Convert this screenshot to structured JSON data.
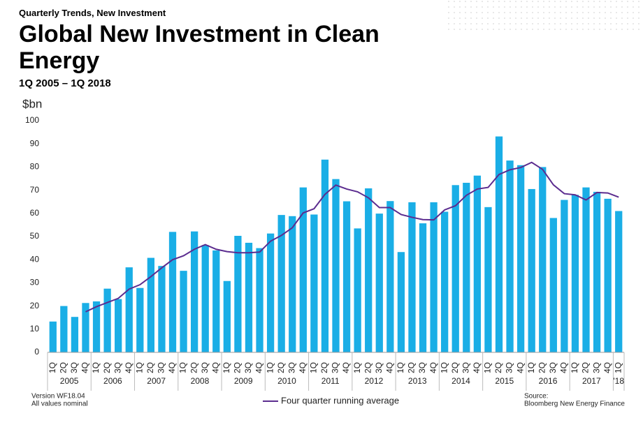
{
  "chart_data": {
    "type": "bar",
    "kicker": "Quarterly Trends, New Investment",
    "title": "Global New Investment in Clean Energy",
    "subtitle": "1Q 2005 – 1Q 2018",
    "y_label": "$bn",
    "categories": [
      "1Q",
      "2Q",
      "3Q",
      "4Q",
      "1Q",
      "2Q",
      "3Q",
      "4Q",
      "1Q",
      "2Q",
      "3Q",
      "4Q",
      "1Q",
      "2Q",
      "3Q",
      "4Q",
      "1Q",
      "2Q",
      "3Q",
      "4Q",
      "1Q",
      "2Q",
      "3Q",
      "4Q",
      "1Q",
      "2Q",
      "3Q",
      "4Q",
      "1Q",
      "2Q",
      "3Q",
      "4Q",
      "1Q",
      "2Q",
      "3Q",
      "4Q",
      "1Q",
      "2Q",
      "3Q",
      "4Q",
      "1Q",
      "2Q",
      "3Q",
      "4Q",
      "1Q",
      "2Q",
      "3Q",
      "4Q",
      "1Q",
      "2Q",
      "3Q",
      "4Q",
      "1Q"
    ],
    "year_groups": [
      "2005",
      "2006",
      "2007",
      "2008",
      "2009",
      "2010",
      "2011",
      "2012",
      "2013",
      "2014",
      "2015",
      "2016",
      "2017",
      "'18"
    ],
    "values": [
      13.3,
      20,
      15.3,
      21.3,
      22,
      27.5,
      23,
      36.7,
      27.8,
      40.8,
      37.3,
      52,
      35.2,
      52.2,
      46.3,
      44,
      30.8,
      50.3,
      47.3,
      45,
      51.3,
      59.3,
      58.8,
      71.2,
      59.5,
      83.2,
      74.8,
      65.2,
      53.5,
      70.8,
      59.9,
      65.3,
      43.3,
      64.8,
      55.7,
      64.8,
      60.7,
      72.2,
      73.2,
      76.3,
      62.7,
      93.2,
      82.8,
      80.8,
      70.5,
      80,
      58,
      65.8,
      68,
      71.2,
      69.3,
      66.3,
      61
    ],
    "color": "#1aaee6",
    "series": [
      {
        "name": "Four quarter running average",
        "color": "#5b2c8f",
        "values": [
          null,
          null,
          null,
          17.5,
          19.7,
          21.5,
          23.3,
          27.3,
          29.2,
          32.7,
          36.5,
          40,
          41.7,
          44.5,
          46.5,
          44.5,
          43.5,
          43,
          43,
          43.3,
          48,
          50.5,
          53.8,
          60.2,
          62,
          68.2,
          72.2,
          70.5,
          69.3,
          66.7,
          62.5,
          62.5,
          59.5,
          58.3,
          57.3,
          57.2,
          61.5,
          63.3,
          67.8,
          70.5,
          71.2,
          76.8,
          78.8,
          79.8,
          82,
          79,
          72.3,
          68.5,
          68,
          65.8,
          69,
          68.8,
          67
        ]
      }
    ],
    "ylim": [
      0,
      100
    ],
    "yticks": [
      0,
      10,
      20,
      30,
      40,
      50,
      60,
      70,
      80,
      90,
      100
    ],
    "grid": false,
    "notes": [
      "Version WF18.04",
      "All values nominal"
    ],
    "source": [
      "Source:",
      "Bloomberg New Energy Finance"
    ]
  }
}
